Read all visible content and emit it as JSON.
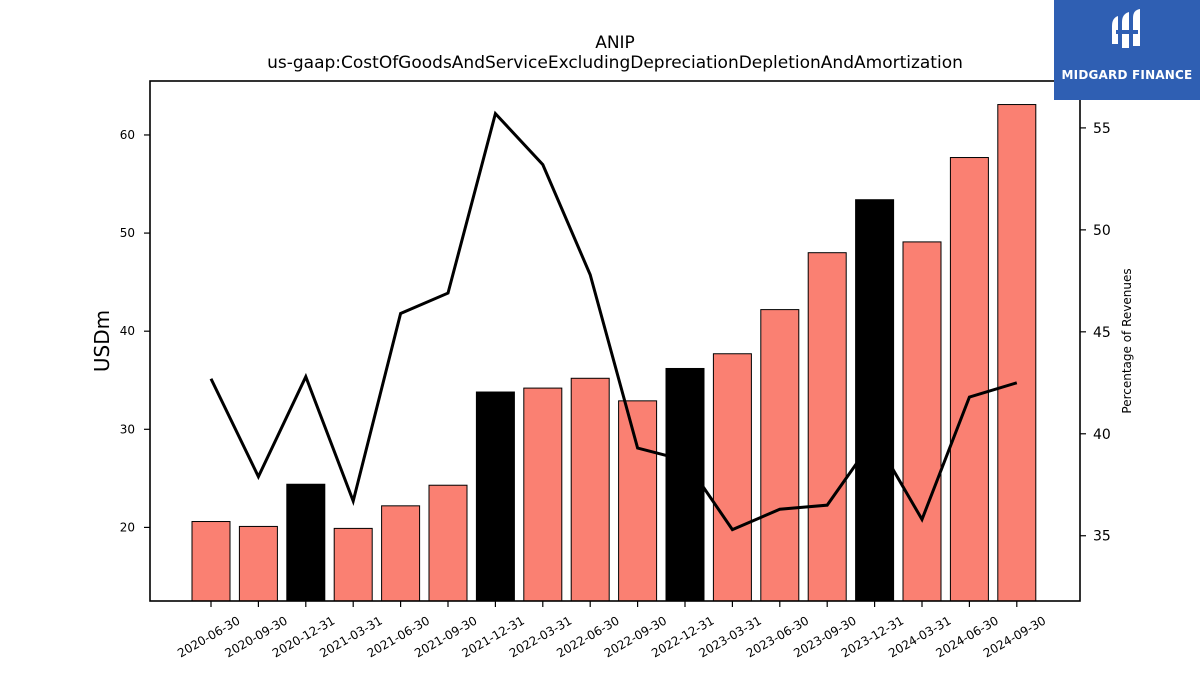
{
  "chart_data": {
    "type": "bar",
    "title": "ANIP",
    "subtitle": "us-gaap:CostOfGoodsAndServiceExcludingDepreciationDepletionAndAmortization",
    "ylabel": "USDm",
    "y2label": "Percentage of Revenues",
    "ylim": [
      12.5,
      65.5
    ],
    "y2lim": [
      31.8,
      57.3
    ],
    "yticks": [
      20,
      30,
      40,
      50,
      60
    ],
    "y2ticks": [
      35,
      40,
      45,
      50,
      55
    ],
    "categories": [
      "2020-06-30",
      "2020-09-30",
      "2020-12-31",
      "2021-03-31",
      "2021-06-30",
      "2021-09-30",
      "2021-12-31",
      "2022-03-31",
      "2022-06-30",
      "2022-09-30",
      "2022-12-31",
      "2023-03-31",
      "2023-06-30",
      "2023-09-30",
      "2023-12-31",
      "2024-03-31",
      "2024-06-30",
      "2024-09-30"
    ],
    "series": [
      {
        "type": "bar",
        "values": [
          20.6,
          20.1,
          24.4,
          19.9,
          22.2,
          24.3,
          33.8,
          34.2,
          35.2,
          32.9,
          36.2,
          37.7,
          42.2,
          48.0,
          53.4,
          49.1,
          57.7,
          63.1
        ],
        "highlight": [
          false,
          false,
          true,
          false,
          false,
          false,
          true,
          false,
          false,
          false,
          true,
          false,
          false,
          false,
          true,
          false,
          false,
          false
        ],
        "color": "#fa8072",
        "highlight_color": "#000000"
      },
      {
        "type": "line",
        "axis": "right",
        "values": [
          42.7,
          37.9,
          42.8,
          36.7,
          45.9,
          46.9,
          55.7,
          53.2,
          47.8,
          39.3,
          38.7,
          35.3,
          36.3,
          36.5,
          39.8,
          35.8,
          41.8,
          42.5
        ],
        "color": "#000000"
      }
    ]
  },
  "logo": {
    "text": "MIDGARD FINANCE",
    "background": "#2f5fb3"
  }
}
